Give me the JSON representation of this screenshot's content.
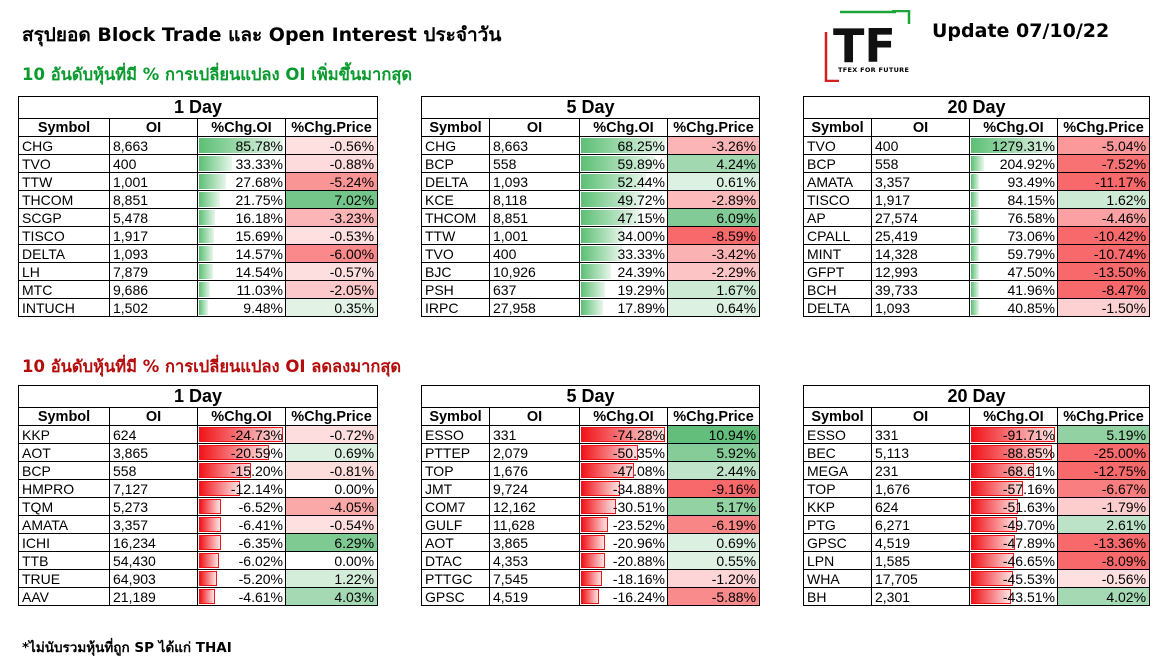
{
  "title": "สรุปยอด Block Trade และ Open Interest ประจำวัน",
  "update": "Update 07/10/22",
  "logo": {
    "letters": "TF",
    "tagline": "TFEX FOR FUTURE"
  },
  "section_up": "10 อันดับหุ้นที่มี % การเปลี่ยนแปลง OI เพิ่มขึ้นมากสุด",
  "section_down": "10 อันดับหุ้นที่มี % การเปลี่ยนแปลง OI ลดลงมากสุด",
  "footnote": "*ไม่นับรวมหุ้นที่ถูก SP ได้แก่ THAI",
  "columns": [
    "Symbol",
    "OI",
    "%Chg.OI",
    "%Chg.Price"
  ],
  "colors": {
    "green_text": "#0a9a2e",
    "red_text": "#b50c0c"
  },
  "tables": [
    {
      "id": "up-1d",
      "period": "1 Day",
      "rows": [
        {
          "symbol": "CHG",
          "oi": "8,663",
          "chg_oi": "85.78%",
          "chg_price": "-0.56%",
          "oi_pct": 85.78,
          "price_pct": -0.56
        },
        {
          "symbol": "TVO",
          "oi": "400",
          "chg_oi": "33.33%",
          "chg_price": "-0.88%",
          "oi_pct": 33.33,
          "price_pct": -0.88
        },
        {
          "symbol": "TTW",
          "oi": "1,001",
          "chg_oi": "27.68%",
          "chg_price": "-5.24%",
          "oi_pct": 27.68,
          "price_pct": -5.24
        },
        {
          "symbol": "THCOM",
          "oi": "8,851",
          "chg_oi": "21.75%",
          "chg_price": "7.02%",
          "oi_pct": 21.75,
          "price_pct": 7.02
        },
        {
          "symbol": "SCGP",
          "oi": "5,478",
          "chg_oi": "16.18%",
          "chg_price": "-3.23%",
          "oi_pct": 16.18,
          "price_pct": -3.23
        },
        {
          "symbol": "TISCO",
          "oi": "1,917",
          "chg_oi": "15.69%",
          "chg_price": "-0.53%",
          "oi_pct": 15.69,
          "price_pct": -0.53
        },
        {
          "symbol": "DELTA",
          "oi": "1,093",
          "chg_oi": "14.57%",
          "chg_price": "-6.00%",
          "oi_pct": 14.57,
          "price_pct": -6.0
        },
        {
          "symbol": "LH",
          "oi": "7,879",
          "chg_oi": "14.54%",
          "chg_price": "-0.57%",
          "oi_pct": 14.54,
          "price_pct": -0.57
        },
        {
          "symbol": "MTC",
          "oi": "9,686",
          "chg_oi": "11.03%",
          "chg_price": "-2.05%",
          "oi_pct": 11.03,
          "price_pct": -2.05
        },
        {
          "symbol": "INTUCH",
          "oi": "1,502",
          "chg_oi": "9.48%",
          "chg_price": "0.35%",
          "oi_pct": 9.48,
          "price_pct": 0.35
        }
      ]
    },
    {
      "id": "up-5d",
      "period": "5 Day",
      "rows": [
        {
          "symbol": "CHG",
          "oi": "8,663",
          "chg_oi": "68.25%",
          "chg_price": "-3.26%",
          "oi_pct": 68.25,
          "price_pct": -3.26
        },
        {
          "symbol": "BCP",
          "oi": "558",
          "chg_oi": "59.89%",
          "chg_price": "4.24%",
          "oi_pct": 59.89,
          "price_pct": 4.24
        },
        {
          "symbol": "DELTA",
          "oi": "1,093",
          "chg_oi": "52.44%",
          "chg_price": "0.61%",
          "oi_pct": 52.44,
          "price_pct": 0.61
        },
        {
          "symbol": "KCE",
          "oi": "8,118",
          "chg_oi": "49.72%",
          "chg_price": "-2.89%",
          "oi_pct": 49.72,
          "price_pct": -2.89
        },
        {
          "symbol": "THCOM",
          "oi": "8,851",
          "chg_oi": "47.15%",
          "chg_price": "6.09%",
          "oi_pct": 47.15,
          "price_pct": 6.09
        },
        {
          "symbol": "TTW",
          "oi": "1,001",
          "chg_oi": "34.00%",
          "chg_price": "-8.59%",
          "oi_pct": 34.0,
          "price_pct": -8.59
        },
        {
          "symbol": "TVO",
          "oi": "400",
          "chg_oi": "33.33%",
          "chg_price": "-3.42%",
          "oi_pct": 33.33,
          "price_pct": -3.42
        },
        {
          "symbol": "BJC",
          "oi": "10,926",
          "chg_oi": "24.39%",
          "chg_price": "-2.29%",
          "oi_pct": 24.39,
          "price_pct": -2.29
        },
        {
          "symbol": "PSH",
          "oi": "637",
          "chg_oi": "19.29%",
          "chg_price": "1.67%",
          "oi_pct": 19.29,
          "price_pct": 1.67
        },
        {
          "symbol": "IRPC",
          "oi": "27,958",
          "chg_oi": "17.89%",
          "chg_price": "0.64%",
          "oi_pct": 17.89,
          "price_pct": 0.64
        }
      ]
    },
    {
      "id": "up-20d",
      "period": "20 Day",
      "rows": [
        {
          "symbol": "TVO",
          "oi": "400",
          "chg_oi": "1279.31%",
          "chg_price": "-5.04%",
          "oi_pct": 1279.31,
          "price_pct": -5.04
        },
        {
          "symbol": "BCP",
          "oi": "558",
          "chg_oi": "204.92%",
          "chg_price": "-7.52%",
          "oi_pct": 204.92,
          "price_pct": -7.52
        },
        {
          "symbol": "AMATA",
          "oi": "3,357",
          "chg_oi": "93.49%",
          "chg_price": "-11.17%",
          "oi_pct": 93.49,
          "price_pct": -11.17
        },
        {
          "symbol": "TISCO",
          "oi": "1,917",
          "chg_oi": "84.15%",
          "chg_price": "1.62%",
          "oi_pct": 84.15,
          "price_pct": 1.62
        },
        {
          "symbol": "AP",
          "oi": "27,574",
          "chg_oi": "76.58%",
          "chg_price": "-4.46%",
          "oi_pct": 76.58,
          "price_pct": -4.46
        },
        {
          "symbol": "CPALL",
          "oi": "25,419",
          "chg_oi": "73.06%",
          "chg_price": "-10.42%",
          "oi_pct": 73.06,
          "price_pct": -10.42
        },
        {
          "symbol": "MINT",
          "oi": "14,328",
          "chg_oi": "59.79%",
          "chg_price": "-10.74%",
          "oi_pct": 59.79,
          "price_pct": -10.74
        },
        {
          "symbol": "GFPT",
          "oi": "12,993",
          "chg_oi": "47.50%",
          "chg_price": "-13.50%",
          "oi_pct": 47.5,
          "price_pct": -13.5
        },
        {
          "symbol": "BCH",
          "oi": "39,733",
          "chg_oi": "41.96%",
          "chg_price": "-8.47%",
          "oi_pct": 41.96,
          "price_pct": -8.47
        },
        {
          "symbol": "DELTA",
          "oi": "1,093",
          "chg_oi": "40.85%",
          "chg_price": "-1.50%",
          "oi_pct": 40.85,
          "price_pct": -1.5
        }
      ]
    },
    {
      "id": "down-1d",
      "period": "1 Day",
      "rows": [
        {
          "symbol": "KKP",
          "oi": "624",
          "chg_oi": "-24.73%",
          "chg_price": "-0.72%",
          "oi_pct": -24.73,
          "price_pct": -0.72
        },
        {
          "symbol": "AOT",
          "oi": "3,865",
          "chg_oi": "-20.59%",
          "chg_price": "0.69%",
          "oi_pct": -20.59,
          "price_pct": 0.69
        },
        {
          "symbol": "BCP",
          "oi": "558",
          "chg_oi": "-15.20%",
          "chg_price": "-0.81%",
          "oi_pct": -15.2,
          "price_pct": -0.81
        },
        {
          "symbol": "HMPRO",
          "oi": "7,127",
          "chg_oi": "-12.14%",
          "chg_price": "0.00%",
          "oi_pct": -12.14,
          "price_pct": 0.0
        },
        {
          "symbol": "TQM",
          "oi": "5,273",
          "chg_oi": "-6.52%",
          "chg_price": "-4.05%",
          "oi_pct": -6.52,
          "price_pct": -4.05
        },
        {
          "symbol": "AMATA",
          "oi": "3,357",
          "chg_oi": "-6.41%",
          "chg_price": "-0.54%",
          "oi_pct": -6.41,
          "price_pct": -0.54
        },
        {
          "symbol": "ICHI",
          "oi": "16,234",
          "chg_oi": "-6.35%",
          "chg_price": "6.29%",
          "oi_pct": -6.35,
          "price_pct": 6.29
        },
        {
          "symbol": "TTB",
          "oi": "54,430",
          "chg_oi": "-6.02%",
          "chg_price": "0.00%",
          "oi_pct": -6.02,
          "price_pct": 0.0
        },
        {
          "symbol": "TRUE",
          "oi": "64,903",
          "chg_oi": "-5.20%",
          "chg_price": "1.22%",
          "oi_pct": -5.2,
          "price_pct": 1.22
        },
        {
          "symbol": "AAV",
          "oi": "21,189",
          "chg_oi": "-4.61%",
          "chg_price": "4.03%",
          "oi_pct": -4.61,
          "price_pct": 4.03
        }
      ]
    },
    {
      "id": "down-5d",
      "period": "5 Day",
      "rows": [
        {
          "symbol": "ESSO",
          "oi": "331",
          "chg_oi": "-74.28%",
          "chg_price": "10.94%",
          "oi_pct": -74.28,
          "price_pct": 10.94
        },
        {
          "symbol": "PTTEP",
          "oi": "2,079",
          "chg_oi": "-50.35%",
          "chg_price": "5.92%",
          "oi_pct": -50.35,
          "price_pct": 5.92
        },
        {
          "symbol": "TOP",
          "oi": "1,676",
          "chg_oi": "-47.08%",
          "chg_price": "2.44%",
          "oi_pct": -47.08,
          "price_pct": 2.44
        },
        {
          "symbol": "JMT",
          "oi": "9,724",
          "chg_oi": "-34.88%",
          "chg_price": "-9.16%",
          "oi_pct": -34.88,
          "price_pct": -9.16
        },
        {
          "symbol": "COM7",
          "oi": "12,162",
          "chg_oi": "-30.51%",
          "chg_price": "5.17%",
          "oi_pct": -30.51,
          "price_pct": 5.17
        },
        {
          "symbol": "GULF",
          "oi": "11,628",
          "chg_oi": "-23.52%",
          "chg_price": "-6.19%",
          "oi_pct": -23.52,
          "price_pct": -6.19
        },
        {
          "symbol": "AOT",
          "oi": "3,865",
          "chg_oi": "-20.96%",
          "chg_price": "0.69%",
          "oi_pct": -20.96,
          "price_pct": 0.69
        },
        {
          "symbol": "DTAC",
          "oi": "4,353",
          "chg_oi": "-20.88%",
          "chg_price": "0.55%",
          "oi_pct": -20.88,
          "price_pct": 0.55
        },
        {
          "symbol": "PTTGC",
          "oi": "7,545",
          "chg_oi": "-18.16%",
          "chg_price": "-1.20%",
          "oi_pct": -18.16,
          "price_pct": -1.2
        },
        {
          "symbol": "GPSC",
          "oi": "4,519",
          "chg_oi": "-16.24%",
          "chg_price": "-5.88%",
          "oi_pct": -16.24,
          "price_pct": -5.88
        }
      ]
    },
    {
      "id": "down-20d",
      "period": "20 Day",
      "rows": [
        {
          "symbol": "ESSO",
          "oi": "331",
          "chg_oi": "-91.71%",
          "chg_price": "5.19%",
          "oi_pct": -91.71,
          "price_pct": 5.19
        },
        {
          "symbol": "BEC",
          "oi": "5,113",
          "chg_oi": "-88.85%",
          "chg_price": "-25.00%",
          "oi_pct": -88.85,
          "price_pct": -25.0
        },
        {
          "symbol": "MEGA",
          "oi": "231",
          "chg_oi": "-68.61%",
          "chg_price": "-12.75%",
          "oi_pct": -68.61,
          "price_pct": -12.75
        },
        {
          "symbol": "TOP",
          "oi": "1,676",
          "chg_oi": "-57.16%",
          "chg_price": "-6.67%",
          "oi_pct": -57.16,
          "price_pct": -6.67
        },
        {
          "symbol": "KKP",
          "oi": "624",
          "chg_oi": "-51.63%",
          "chg_price": "-1.79%",
          "oi_pct": -51.63,
          "price_pct": -1.79
        },
        {
          "symbol": "PTG",
          "oi": "6,271",
          "chg_oi": "-49.70%",
          "chg_price": "2.61%",
          "oi_pct": -49.7,
          "price_pct": 2.61
        },
        {
          "symbol": "GPSC",
          "oi": "4,519",
          "chg_oi": "-47.89%",
          "chg_price": "-13.36%",
          "oi_pct": -47.89,
          "price_pct": -13.36
        },
        {
          "symbol": "LPN",
          "oi": "1,585",
          "chg_oi": "-46.65%",
          "chg_price": "-8.09%",
          "oi_pct": -46.65,
          "price_pct": -8.09
        },
        {
          "symbol": "WHA",
          "oi": "17,705",
          "chg_oi": "-45.53%",
          "chg_price": "-0.56%",
          "oi_pct": -45.53,
          "price_pct": -0.56
        },
        {
          "symbol": "BH",
          "oi": "2,301",
          "chg_oi": "-43.51%",
          "chg_price": "4.02%",
          "oi_pct": -43.51,
          "price_pct": 4.02
        }
      ]
    }
  ]
}
